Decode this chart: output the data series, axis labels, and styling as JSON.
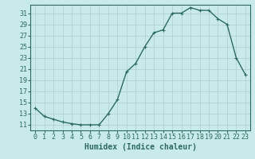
{
  "x": [
    0,
    1,
    2,
    3,
    4,
    5,
    6,
    7,
    8,
    9,
    10,
    11,
    12,
    13,
    14,
    15,
    16,
    17,
    18,
    19,
    20,
    21,
    22,
    23
  ],
  "y": [
    14.0,
    12.5,
    12.0,
    11.5,
    11.2,
    11.0,
    11.0,
    11.0,
    13.0,
    15.5,
    20.5,
    22.0,
    25.0,
    27.5,
    28.0,
    31.0,
    31.0,
    32.0,
    31.5,
    31.5,
    30.0,
    29.0,
    23.0,
    20.0
  ],
  "line_color": "#2e6b5e",
  "marker": "+",
  "marker_size": 3.5,
  "bg_color": "#c8eaea",
  "grid_color": "#b0cccc",
  "xlabel": "Humidex (Indice chaleur)",
  "ylabel_ticks": [
    11,
    13,
    15,
    17,
    19,
    21,
    23,
    25,
    27,
    29,
    31
  ],
  "ylim": [
    10.0,
    32.5
  ],
  "xlim": [
    -0.5,
    23.5
  ],
  "xlabel_fontsize": 7,
  "tick_fontsize": 6,
  "line_width": 1.0
}
